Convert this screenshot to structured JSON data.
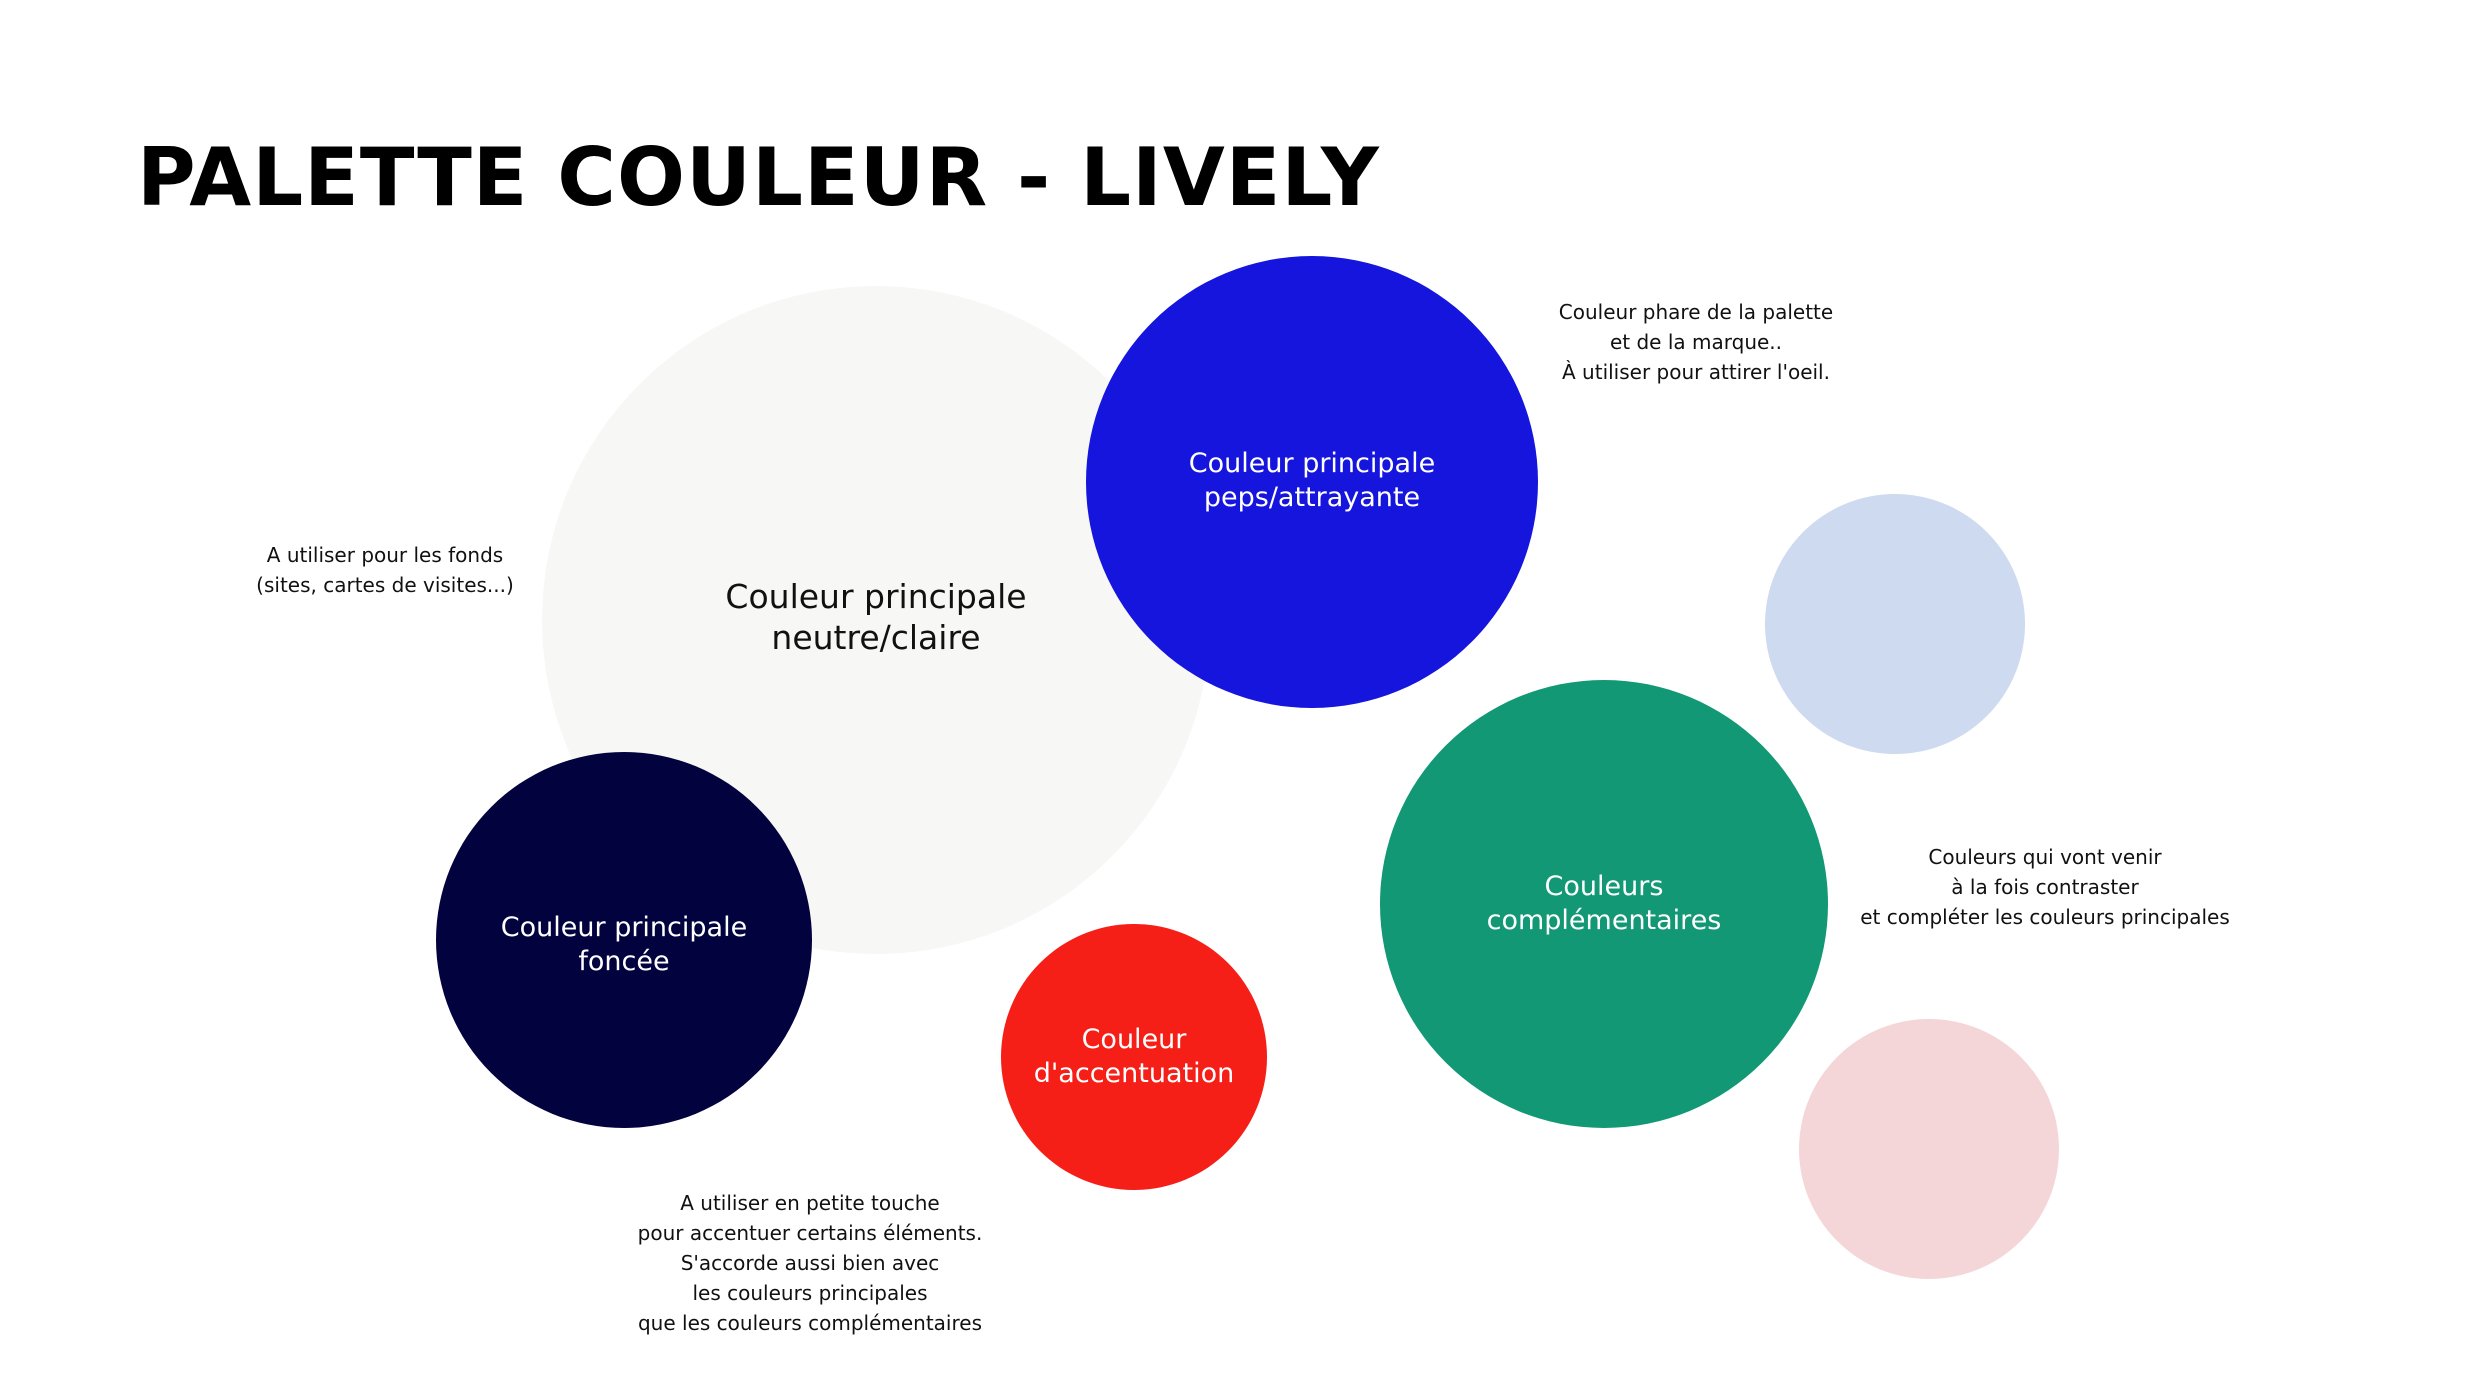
{
  "title": "PALETTE COULEUR - LIVELY",
  "colors": {
    "neutral": "#F7F7F5",
    "bright": "#1515DD",
    "dark": "#02023F",
    "accent": "#F51F18",
    "complementary": "#129874",
    "light_blue": "#CDDAEF",
    "light_pink": "#F4D6D8"
  },
  "circles": {
    "neutral": {
      "lines": [
        "Couleur principale",
        "neutre/claire"
      ]
    },
    "bright": {
      "lines": [
        "Couleur principale",
        "peps/attrayante"
      ]
    },
    "dark": {
      "lines": [
        "Couleur principale",
        "foncée"
      ]
    },
    "accent": {
      "lines": [
        "Couleur",
        "d'accentuation"
      ]
    },
    "complementary": {
      "lines": [
        "Couleurs",
        "complémentaires"
      ]
    }
  },
  "notes": {
    "bright": [
      "Couleur phare de la palette",
      "et de la marque..",
      "À utiliser pour attirer l'oeil."
    ],
    "neutral": [
      "A utiliser pour les fonds",
      "(sites, cartes de visites...)"
    ],
    "complementary": [
      "Couleurs qui vont venir",
      "à la fois contraster",
      "et compléter les couleurs principales"
    ],
    "accent": [
      "A utiliser en petite touche",
      "pour accentuer certains éléments.",
      "S'accorde aussi bien avec",
      "les couleurs principales",
      "que les couleurs complémentaires"
    ]
  }
}
